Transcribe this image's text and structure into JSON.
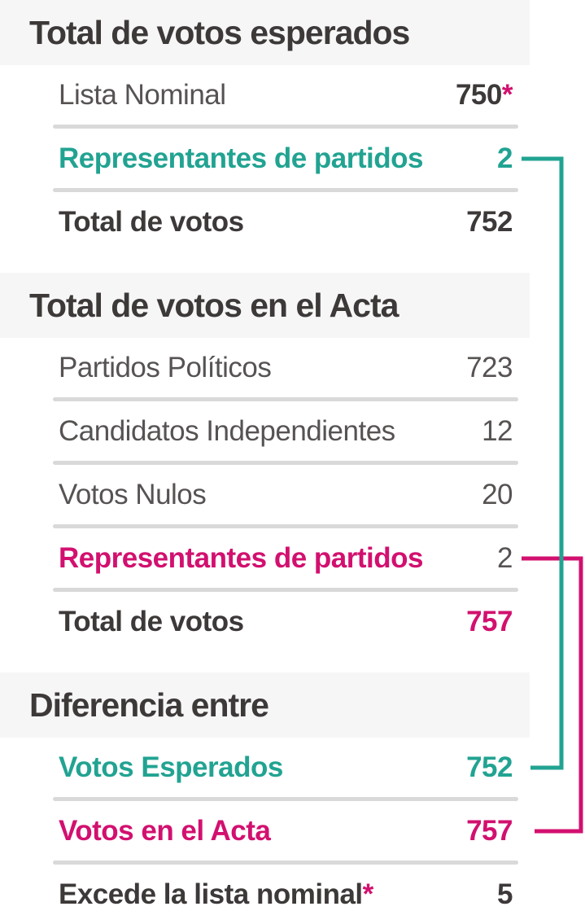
{
  "colors": {
    "teal": "#22a392",
    "pink": "#d2106f",
    "dark_text": "#3d3939",
    "gray_text": "#575353",
    "divider": "#d9d9d9",
    "band_bg": "#f6f6f6"
  },
  "sections": [
    {
      "id": "esperados",
      "title": "Total de votos esperados",
      "rows": [
        {
          "label": "Lista Nominal",
          "label_style": "regular",
          "value": "750",
          "value_style": "dark-bold",
          "value_suffix": "*",
          "suffix_style": "pink-bold"
        },
        {
          "label": "Representantes de partidos",
          "label_style": "teal-bold",
          "value": "2",
          "value_style": "teal-bold",
          "connector": "teal-start"
        },
        {
          "label": "Total de votos",
          "label_style": "dark-bold",
          "value": "752",
          "value_style": "dark-bold"
        }
      ]
    },
    {
      "id": "acta",
      "title": "Total de votos en el Acta",
      "rows": [
        {
          "label": "Partidos Políticos",
          "label_style": "regular",
          "value": "723",
          "value_style": "regular"
        },
        {
          "label": "Candidatos Independientes",
          "label_style": "regular",
          "value": "12",
          "value_style": "regular"
        },
        {
          "label": "Votos Nulos",
          "label_style": "regular",
          "value": "20",
          "value_style": "regular"
        },
        {
          "label": "Representantes de partidos",
          "label_style": "pink-bold",
          "value": "2",
          "value_style": "regular",
          "connector": "pink-start"
        },
        {
          "label": "Total de votos",
          "label_style": "dark-bold",
          "value": "757",
          "value_style": "pink-bold"
        }
      ]
    },
    {
      "id": "diferencia",
      "title": "Diferencia entre",
      "rows": [
        {
          "label": "Votos Esperados",
          "label_style": "teal-bold",
          "value": "752",
          "value_style": "teal-bold",
          "connector": "teal-end"
        },
        {
          "label": "Votos en el Acta",
          "label_style": "pink-bold",
          "value": "757",
          "value_style": "pink-bold",
          "connector": "pink-end"
        },
        {
          "label": "Excede la lista nominal",
          "label_style": "dark-bold",
          "label_suffix": "*",
          "suffix_style": "pink-bold",
          "value": "5",
          "value_style": "dark-bold"
        }
      ]
    }
  ],
  "chart_data": {
    "type": "table",
    "title": "",
    "sections": [
      {
        "title": "Total de votos esperados",
        "rows": [
          [
            "Lista Nominal",
            750
          ],
          [
            "Representantes de partidos",
            2
          ],
          [
            "Total de votos",
            752
          ]
        ]
      },
      {
        "title": "Total de votos en el Acta",
        "rows": [
          [
            "Partidos Políticos",
            723
          ],
          [
            "Candidatos Independientes",
            12
          ],
          [
            "Votos Nulos",
            20
          ],
          [
            "Representantes de partidos",
            2
          ],
          [
            "Total de votos",
            757
          ]
        ]
      },
      {
        "title": "Diferencia entre",
        "rows": [
          [
            "Votos Esperados",
            752
          ],
          [
            "Votos en el Acta",
            757
          ],
          [
            "Excede la lista nominal*",
            5
          ]
        ]
      }
    ],
    "annotations": [
      "teal connector links Representantes de partidos (2, esperados) to Votos Esperados (752)",
      "pink connector links Representantes de partidos (2, acta) to Votos en el Acta (757)"
    ]
  }
}
